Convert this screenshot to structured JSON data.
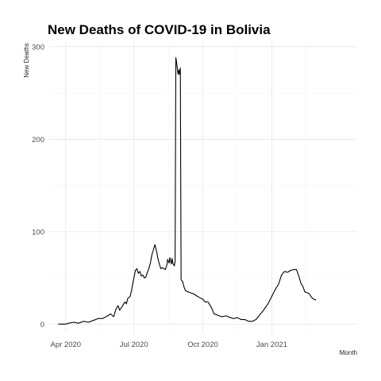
{
  "chart_data": {
    "type": "line",
    "title": "New Deaths of COVID-19 in Bolivia",
    "xlabel": "Month",
    "ylabel": "New Deaths",
    "ylim": [
      -10,
      305
    ],
    "y_ticks": [
      0,
      100,
      200,
      300
    ],
    "xlim": [
      "2020-03-10",
      "2021-04-25"
    ],
    "x_ticks": [
      {
        "date": "2020-04-01",
        "label": "Apr 2020"
      },
      {
        "date": "2020-07-01",
        "label": "Jul 2020"
      },
      {
        "date": "2020-10-01",
        "label": "Oct 2020"
      },
      {
        "date": "2021-01-01",
        "label": "Jan 2021"
      }
    ],
    "x_minor": [
      "2020-05-16",
      "2020-08-16",
      "2020-11-16",
      "2021-02-15"
    ],
    "grid": true,
    "series": [
      {
        "color": "#000000",
        "points": [
          [
            "2020-03-22",
            0
          ],
          [
            "2020-03-28",
            0
          ],
          [
            "2020-04-01",
            0
          ],
          [
            "2020-04-05",
            1
          ],
          [
            "2020-04-12",
            2
          ],
          [
            "2020-04-18",
            1
          ],
          [
            "2020-04-25",
            3
          ],
          [
            "2020-05-01",
            2
          ],
          [
            "2020-05-08",
            4
          ],
          [
            "2020-05-14",
            6
          ],
          [
            "2020-05-20",
            6
          ],
          [
            "2020-05-25",
            8
          ],
          [
            "2020-05-31",
            11
          ],
          [
            "2020-06-04",
            8
          ],
          [
            "2020-06-07",
            16
          ],
          [
            "2020-06-10",
            20
          ],
          [
            "2020-06-12",
            15
          ],
          [
            "2020-06-16",
            20
          ],
          [
            "2020-06-19",
            24
          ],
          [
            "2020-06-21",
            22
          ],
          [
            "2020-06-23",
            28
          ],
          [
            "2020-06-26",
            30
          ],
          [
            "2020-06-28",
            37
          ],
          [
            "2020-07-01",
            50
          ],
          [
            "2020-07-03",
            58
          ],
          [
            "2020-07-05",
            60
          ],
          [
            "2020-07-07",
            55
          ],
          [
            "2020-07-09",
            57
          ],
          [
            "2020-07-11",
            52
          ],
          [
            "2020-07-13",
            53
          ],
          [
            "2020-07-15",
            50
          ],
          [
            "2020-07-17",
            51
          ],
          [
            "2020-07-19",
            56
          ],
          [
            "2020-07-21",
            60
          ],
          [
            "2020-07-23",
            66
          ],
          [
            "2020-07-25",
            75
          ],
          [
            "2020-07-27",
            80
          ],
          [
            "2020-07-29",
            86
          ],
          [
            "2020-07-31",
            80
          ],
          [
            "2020-08-02",
            71
          ],
          [
            "2020-08-04",
            65
          ],
          [
            "2020-08-06",
            60
          ],
          [
            "2020-08-08",
            61
          ],
          [
            "2020-08-10",
            60
          ],
          [
            "2020-08-12",
            59
          ],
          [
            "2020-08-14",
            64
          ],
          [
            "2020-08-15",
            70
          ],
          [
            "2020-08-17",
            66
          ],
          [
            "2020-08-18",
            72
          ],
          [
            "2020-08-20",
            65
          ],
          [
            "2020-08-21",
            71
          ],
          [
            "2020-08-22",
            66
          ],
          [
            "2020-08-24",
            63
          ],
          [
            "2020-08-25",
            68
          ],
          [
            "2020-08-26",
            288
          ],
          [
            "2020-08-27",
            283
          ],
          [
            "2020-08-28",
            276
          ],
          [
            "2020-08-29",
            270
          ],
          [
            "2020-08-30",
            275
          ],
          [
            "2020-08-31",
            270
          ],
          [
            "2020-09-01",
            277
          ],
          [
            "2020-09-02",
            48
          ],
          [
            "2020-09-04",
            46
          ],
          [
            "2020-09-06",
            40
          ],
          [
            "2020-09-08",
            36
          ],
          [
            "2020-09-11",
            35
          ],
          [
            "2020-09-14",
            34
          ],
          [
            "2020-09-18",
            33
          ],
          [
            "2020-09-22",
            31
          ],
          [
            "2020-09-26",
            29
          ],
          [
            "2020-10-01",
            27
          ],
          [
            "2020-10-04",
            24
          ],
          [
            "2020-10-08",
            24
          ],
          [
            "2020-10-13",
            17
          ],
          [
            "2020-10-16",
            11
          ],
          [
            "2020-10-20",
            10
          ],
          [
            "2020-10-26",
            8
          ],
          [
            "2020-11-01",
            9
          ],
          [
            "2020-11-07",
            7
          ],
          [
            "2020-11-11",
            6
          ],
          [
            "2020-11-16",
            7
          ],
          [
            "2020-11-21",
            5
          ],
          [
            "2020-11-26",
            5
          ],
          [
            "2020-12-01",
            3
          ],
          [
            "2020-12-06",
            3
          ],
          [
            "2020-12-11",
            5
          ],
          [
            "2020-12-16",
            10
          ],
          [
            "2020-12-21",
            15
          ],
          [
            "2020-12-27",
            22
          ],
          [
            "2021-01-01",
            30
          ],
          [
            "2021-01-06",
            38
          ],
          [
            "2021-01-10",
            43
          ],
          [
            "2021-01-14",
            53
          ],
          [
            "2021-01-18",
            57
          ],
          [
            "2021-01-22",
            56
          ],
          [
            "2021-01-26",
            58
          ],
          [
            "2021-01-30",
            59
          ],
          [
            "2021-02-03",
            59
          ],
          [
            "2021-02-06",
            52
          ],
          [
            "2021-02-09",
            44
          ],
          [
            "2021-02-12",
            40
          ],
          [
            "2021-02-14",
            35
          ],
          [
            "2021-02-17",
            34
          ],
          [
            "2021-02-20",
            33
          ],
          [
            "2021-02-23",
            29
          ],
          [
            "2021-02-26",
            27
          ],
          [
            "2021-03-01",
            26
          ]
        ]
      }
    ]
  }
}
